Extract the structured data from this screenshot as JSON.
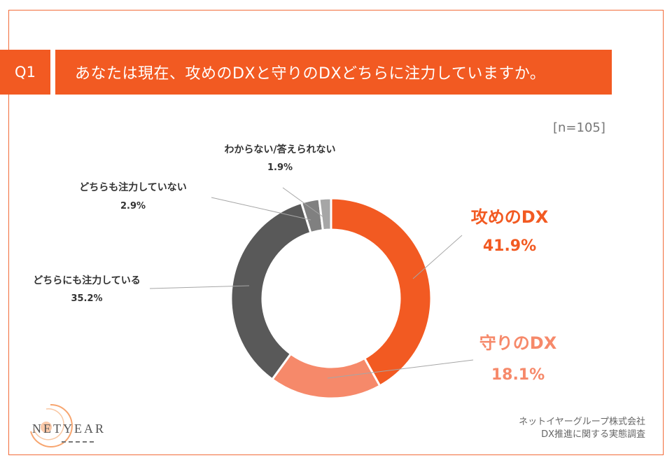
{
  "header": {
    "badge": "Q1",
    "question": "あなたは現在、攻めのDXと守りのDXどちらに注力していますか。"
  },
  "sample_size": "[n=105]",
  "footer": {
    "line1": "ネットイヤーグループ株式会社",
    "line2": "DX推進に関する実態調査"
  },
  "logo": {
    "text": "NETYEAR"
  },
  "chart_data": {
    "type": "pie",
    "donut": true,
    "title": "",
    "slices": [
      {
        "label": "攻めのDX",
        "value": 41.9,
        "display": "41.9%",
        "color": "#f25a22"
      },
      {
        "label": "守りのDX",
        "value": 18.1,
        "display": "18.1%",
        "color": "#f6896a"
      },
      {
        "label": "どちらにも注力している",
        "value": 35.2,
        "display": "35.2%",
        "color": "#595959"
      },
      {
        "label": "どちらも注力していない",
        "value": 2.9,
        "display": "2.9%",
        "color": "#808080"
      },
      {
        "label": "わからない/答えられない",
        "value": 1.9,
        "display": "1.9%",
        "color": "#a6a6a6"
      }
    ]
  }
}
